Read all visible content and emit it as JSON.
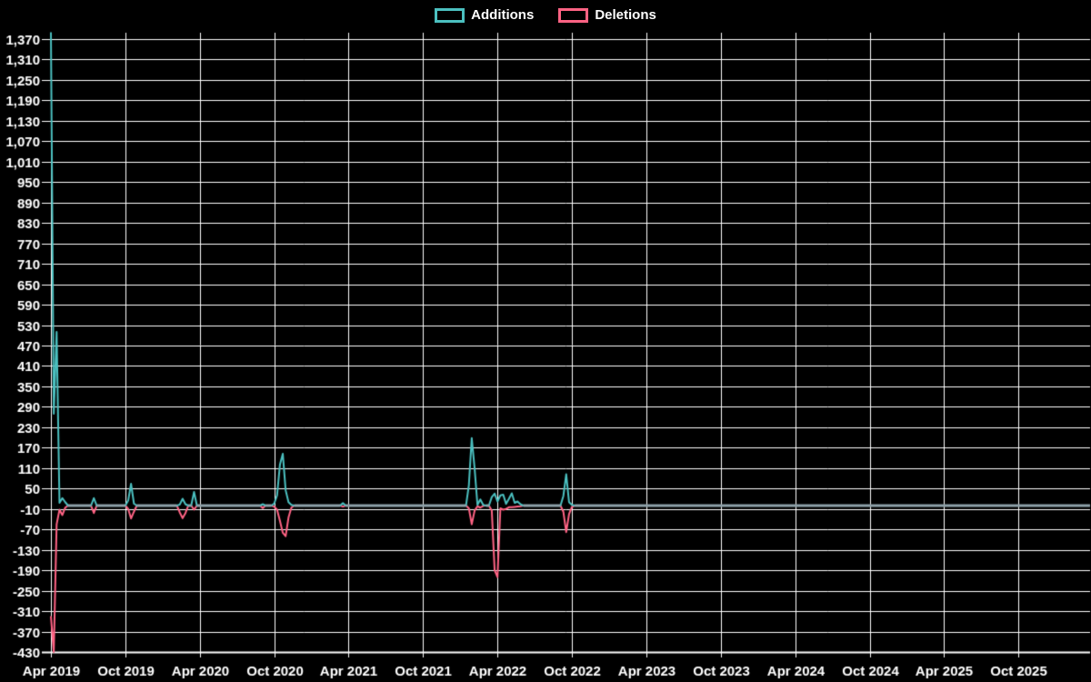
{
  "chart_data": {
    "type": "line",
    "title": "",
    "legend": {
      "position": "top-center",
      "items": [
        {
          "label": "Additions",
          "color": "#4bc0c0"
        },
        {
          "label": "Deletions",
          "color": "#ff6384"
        }
      ]
    },
    "colors": {
      "background": "#000000",
      "grid": "#ffffff",
      "text": "#ffffff",
      "additions_line": "#4bc0c0",
      "deletions_line": "#ff6384",
      "zero_overlap_line": "#8da0a8"
    },
    "grid": true,
    "y_axis": {
      "tick_min": -430,
      "tick_max": 1370,
      "tick_step": 60,
      "tick_labels_top_to_bottom": [
        "1,370",
        "1,310",
        "1,250",
        "1,190",
        "1,130",
        "1,070",
        "1,010",
        "950",
        "890",
        "830",
        "770",
        "710",
        "650",
        "590",
        "530",
        "470",
        "410",
        "350",
        "290",
        "230",
        "170",
        "110",
        "50",
        "-10",
        "-70",
        "-130",
        "-190",
        "-250",
        "-310",
        "-370",
        "-430"
      ]
    },
    "x_axis": {
      "tick_labels": [
        "Apr 2019",
        "Oct 2019",
        "Apr 2020",
        "Oct 2020",
        "Apr 2021",
        "Oct 2021",
        "Apr 2022",
        "Oct 2022",
        "Apr 2023",
        "Oct 2023",
        "Apr 2024",
        "Oct 2024",
        "Apr 2025",
        "Oct 2025"
      ],
      "tick_interval_weeks": 26
    },
    "weeks_total": 364,
    "start_label": "Apr 2019",
    "series_names": [
      "Additions",
      "Deletions"
    ],
    "points_week_additions_deletions": [
      [
        0,
        1390,
        -325
      ],
      [
        1,
        270,
        -430
      ],
      [
        2,
        510,
        -55
      ],
      [
        3,
        8,
        -12
      ],
      [
        4,
        22,
        -28
      ],
      [
        5,
        10,
        -6
      ],
      [
        15,
        22,
        -22
      ],
      [
        27,
        15,
        -10
      ],
      [
        28,
        64,
        -38
      ],
      [
        29,
        6,
        -18
      ],
      [
        45,
        3,
        -20
      ],
      [
        46,
        20,
        -37
      ],
      [
        47,
        4,
        -22
      ],
      [
        50,
        40,
        -12
      ],
      [
        74,
        4,
        -7
      ],
      [
        78,
        6,
        -3
      ],
      [
        79,
        30,
        -12
      ],
      [
        80,
        120,
        -45
      ],
      [
        81,
        152,
        -80
      ],
      [
        82,
        45,
        -90
      ],
      [
        83,
        10,
        -35
      ],
      [
        84,
        2,
        -6
      ],
      [
        102,
        7,
        -3
      ],
      [
        146,
        60,
        -8
      ],
      [
        147,
        198,
        -55
      ],
      [
        148,
        110,
        -15
      ],
      [
        149,
        2,
        -2
      ],
      [
        150,
        18,
        -6
      ],
      [
        151,
        2,
        -1
      ],
      [
        154,
        25,
        -15
      ],
      [
        155,
        35,
        -190
      ],
      [
        156,
        12,
        -210
      ],
      [
        157,
        30,
        -8
      ],
      [
        158,
        32,
        -12
      ],
      [
        159,
        5,
        -10
      ],
      [
        160,
        20,
        -5
      ],
      [
        161,
        36,
        -5
      ],
      [
        162,
        8,
        -4
      ],
      [
        163,
        12,
        -3
      ],
      [
        164,
        4,
        -2
      ],
      [
        179,
        28,
        -18
      ],
      [
        180,
        92,
        -78
      ],
      [
        181,
        10,
        -25
      ],
      [
        182,
        2,
        -4
      ]
    ]
  }
}
